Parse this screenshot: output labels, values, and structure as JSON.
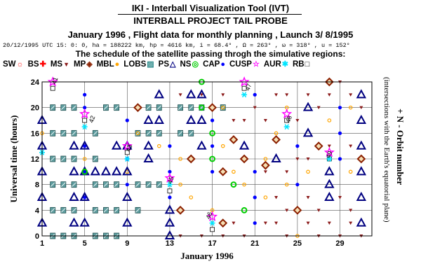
{
  "header": {
    "title": "IKI - Interball Visualization Tool (IVT)",
    "subtitle": "INTERBALL PROJECT TAIL PROBE",
    "mission_line": "January 1996 ,  Flight data for monthly planning ,   Launch  3/ 8/1995",
    "orbit_line": "20/12/1995 UTC 15: 0: 0, ha = 188222 km, hp =   4616 km, i = 68.4° , Ω = 263° , ω = 318° , u = 152°",
    "schedule_heading": "The schedule of the satellite passing throgh the simulative regions:"
  },
  "legend": [
    {
      "label": "SW",
      "symbol": "sun-icon",
      "color": "#ff2020"
    },
    {
      "label": "BS",
      "symbol": "plus-icon",
      "color": "#ff0000"
    },
    {
      "label": "MS",
      "symbol": "triangle-down-icon",
      "color": "#8b1a1a"
    },
    {
      "label": "MP",
      "symbol": "diamond-icon",
      "color": "#8b2000"
    },
    {
      "label": "MBL",
      "symbol": "dot-icon",
      "color": "#ffa500"
    },
    {
      "label": "LOBS",
      "symbol": "hatched-square-icon",
      "color": "#2e8b8b"
    },
    {
      "label": "PS",
      "symbol": "triangle-up-icon",
      "color": "#000080"
    },
    {
      "label": "NS",
      "symbol": "ring-icon",
      "color": "#00cc00"
    },
    {
      "label": "CAP",
      "symbol": "dot-icon",
      "color": "#0000ff"
    },
    {
      "label": "CUSP",
      "symbol": "star-icon",
      "color": "#ff00ff"
    },
    {
      "label": "AUR",
      "symbol": "asterisk-icon",
      "color": "#00e5ff"
    },
    {
      "label": "RB",
      "symbol": "open-square-icon",
      "color": "#000000"
    }
  ],
  "chart_data": {
    "type": "scatter",
    "xlabel": "January 1996",
    "ylabel": "Universal time (hours)",
    "right_label": "+ N - Orbit number",
    "right_sublabel": "(intersections with the Earth's equatorial plane)",
    "x_ticks": [
      "1",
      "5",
      "9",
      "13",
      "17",
      "21",
      "25",
      "29"
    ],
    "y_ticks": [
      "0",
      "4",
      "8",
      "12",
      "16",
      "20",
      "24"
    ],
    "xlim": [
      1,
      32
    ],
    "ylim": [
      0,
      24
    ],
    "grid": true,
    "orbit_labels": [
      {
        "day": 2.0,
        "hour": 24.0,
        "label": "41"
      },
      {
        "day": 5.5,
        "hour": 18.0,
        "label": "42"
      },
      {
        "day": 9.0,
        "hour": 13.5,
        "label": "43"
      },
      {
        "day": 12.9,
        "hour": 8.5,
        "label": "45"
      },
      {
        "day": 16.5,
        "hour": 3.0,
        "label": "46"
      },
      {
        "day": 20.2,
        "hour": 23.0,
        "label": "47"
      },
      {
        "day": 24.0,
        "hour": 18.0,
        "label": "48"
      },
      {
        "day": 27.8,
        "hour": 12.5,
        "label": "49"
      }
    ],
    "series": [
      {
        "name": "LOBS",
        "points": [
          [
            2,
            0
          ],
          [
            2,
            4
          ],
          [
            2,
            8
          ],
          [
            2,
            12
          ],
          [
            2,
            16
          ],
          [
            2,
            20
          ],
          [
            3,
            0
          ],
          [
            3,
            4
          ],
          [
            3,
            8
          ],
          [
            3,
            12
          ],
          [
            3,
            16
          ],
          [
            3,
            20
          ],
          [
            4,
            0
          ],
          [
            4,
            4
          ],
          [
            4,
            8
          ],
          [
            4,
            12
          ],
          [
            4,
            16
          ],
          [
            4,
            20
          ],
          [
            6,
            0
          ],
          [
            6,
            4
          ],
          [
            6,
            8
          ],
          [
            6,
            12
          ],
          [
            6,
            16
          ],
          [
            7,
            0
          ],
          [
            7,
            4
          ],
          [
            7,
            8
          ],
          [
            7,
            20
          ],
          [
            8,
            0
          ],
          [
            8,
            4
          ],
          [
            8,
            8
          ],
          [
            8,
            20
          ],
          [
            10,
            4
          ],
          [
            10,
            8
          ],
          [
            10,
            16
          ],
          [
            11,
            8
          ],
          [
            11,
            16
          ],
          [
            11,
            20
          ],
          [
            12,
            8
          ],
          [
            12,
            16
          ],
          [
            12,
            20
          ],
          [
            14,
            16
          ],
          [
            14,
            20
          ],
          [
            15,
            16
          ],
          [
            15,
            20
          ],
          [
            16,
            20
          ],
          [
            18,
            20
          ]
        ]
      },
      {
        "name": "PS",
        "points": [
          [
            1,
            2
          ],
          [
            1,
            6
          ],
          [
            1,
            10
          ],
          [
            1,
            14
          ],
          [
            1,
            18
          ],
          [
            4,
            2
          ],
          [
            4,
            6
          ],
          [
            4,
            10
          ],
          [
            4,
            14
          ],
          [
            5,
            2
          ],
          [
            5,
            6
          ],
          [
            5,
            10
          ],
          [
            5,
            14
          ],
          [
            6,
            10
          ],
          [
            7,
            10
          ],
          [
            8,
            10
          ],
          [
            8,
            14
          ],
          [
            9,
            2
          ],
          [
            9,
            6
          ],
          [
            9,
            10
          ],
          [
            9,
            14
          ],
          [
            11,
            12
          ],
          [
            11,
            14
          ],
          [
            11,
            18
          ],
          [
            12,
            18
          ],
          [
            12,
            22
          ],
          [
            13,
            0
          ],
          [
            13,
            2
          ],
          [
            13,
            4
          ],
          [
            15,
            18
          ],
          [
            15,
            22
          ],
          [
            16,
            14
          ],
          [
            16,
            18
          ],
          [
            16,
            22
          ],
          [
            20,
            14
          ],
          [
            23,
            12
          ],
          [
            26,
            16
          ],
          [
            26,
            20
          ],
          [
            28,
            6
          ],
          [
            28,
            8
          ],
          [
            28,
            10
          ],
          [
            31,
            2
          ],
          [
            31,
            6
          ],
          [
            31,
            10
          ],
          [
            31,
            14
          ],
          [
            31,
            18
          ],
          [
            31,
            22
          ]
        ]
      },
      {
        "name": "CAP",
        "points": [
          [
            5,
            6
          ],
          [
            5,
            10
          ],
          [
            5,
            14
          ],
          [
            5,
            20
          ],
          [
            5,
            22
          ],
          [
            9,
            8
          ],
          [
            9,
            12
          ],
          [
            9,
            18
          ],
          [
            13,
            6
          ],
          [
            13,
            10
          ],
          [
            13,
            14
          ],
          [
            17,
            10
          ],
          [
            17,
            14
          ],
          [
            17,
            18
          ],
          [
            21,
            2
          ],
          [
            21,
            6
          ],
          [
            21,
            10
          ],
          [
            21,
            22
          ],
          [
            25,
            4
          ],
          [
            25,
            8
          ],
          [
            25,
            14
          ],
          [
            29,
            12
          ],
          [
            29,
            16
          ],
          [
            29,
            20
          ]
        ]
      },
      {
        "name": "MBL",
        "points": [
          [
            1,
            16
          ],
          [
            5,
            12
          ],
          [
            9,
            10
          ],
          [
            10,
            16
          ],
          [
            12,
            14
          ],
          [
            14,
            12
          ],
          [
            14,
            8
          ],
          [
            15,
            6
          ],
          [
            17,
            4
          ],
          [
            18,
            20
          ],
          [
            18,
            14
          ],
          [
            19,
            10
          ],
          [
            20,
            8
          ],
          [
            22,
            6
          ],
          [
            22,
            12
          ],
          [
            23,
            16
          ],
          [
            24,
            20
          ],
          [
            24,
            8
          ],
          [
            25,
            0
          ],
          [
            26,
            10
          ],
          [
            27,
            14
          ],
          [
            28,
            18
          ],
          [
            30,
            20
          ],
          [
            30,
            10
          ]
        ]
      },
      {
        "name": "MS",
        "points": [
          [
            14,
            0
          ],
          [
            16,
            0
          ],
          [
            18,
            0
          ],
          [
            19,
            2
          ],
          [
            20,
            0
          ],
          [
            22,
            2
          ],
          [
            23,
            2
          ],
          [
            24,
            0
          ],
          [
            25,
            12
          ],
          [
            26,
            2
          ],
          [
            27,
            0
          ],
          [
            28,
            2
          ],
          [
            29,
            0
          ],
          [
            30,
            2
          ],
          [
            31,
            0
          ],
          [
            14,
            22
          ],
          [
            16,
            22
          ],
          [
            18,
            22
          ],
          [
            19,
            18
          ],
          [
            20,
            18
          ],
          [
            21,
            20
          ],
          [
            22,
            18
          ],
          [
            23,
            22
          ],
          [
            24,
            22
          ],
          [
            25,
            18
          ],
          [
            26,
            22
          ],
          [
            27,
            20
          ],
          [
            28,
            22
          ],
          [
            29,
            24
          ],
          [
            30,
            22
          ],
          [
            31,
            20
          ],
          [
            23,
            6
          ],
          [
            24,
            4
          ],
          [
            26,
            6
          ],
          [
            27,
            4
          ],
          [
            29,
            6
          ],
          [
            30,
            4
          ],
          [
            22,
            10
          ],
          [
            24,
            10
          ],
          [
            26,
            12
          ],
          [
            28,
            14
          ],
          [
            30,
            14
          ]
        ]
      },
      {
        "name": "MP",
        "points": [
          [
            10,
            20
          ],
          [
            14,
            4
          ],
          [
            15,
            12
          ],
          [
            17,
            20
          ],
          [
            18,
            2
          ],
          [
            18,
            10
          ],
          [
            19,
            15
          ],
          [
            20,
            12
          ],
          [
            22,
            11
          ],
          [
            23,
            15
          ],
          [
            25,
            4
          ],
          [
            27,
            14
          ],
          [
            28,
            24
          ],
          [
            31,
            12
          ]
        ]
      },
      {
        "name": "NS",
        "points": [
          [
            5,
            10
          ],
          [
            16,
            24
          ],
          [
            16,
            20
          ],
          [
            17,
            16
          ],
          [
            17,
            12
          ],
          [
            19,
            8
          ],
          [
            20,
            4
          ]
        ]
      },
      {
        "name": "CUSP",
        "points": [
          [
            2,
            24
          ],
          [
            5,
            19
          ],
          [
            9,
            14
          ],
          [
            13,
            9
          ],
          [
            17,
            3
          ],
          [
            20,
            24
          ],
          [
            24,
            19
          ],
          [
            28,
            13
          ]
        ]
      },
      {
        "name": "AUR",
        "points": [
          [
            1,
            13
          ],
          [
            5,
            17
          ],
          [
            9,
            12
          ],
          [
            13,
            8
          ],
          [
            17,
            2
          ],
          [
            20,
            22
          ],
          [
            24,
            17
          ],
          [
            28,
            12
          ]
        ]
      },
      {
        "name": "RB",
        "points": [
          [
            2,
            23
          ],
          [
            5,
            18
          ],
          [
            9,
            13
          ],
          [
            13,
            7
          ],
          [
            17,
            1
          ],
          [
            20,
            23
          ],
          [
            24,
            18
          ],
          [
            28,
            12
          ]
        ]
      }
    ]
  }
}
